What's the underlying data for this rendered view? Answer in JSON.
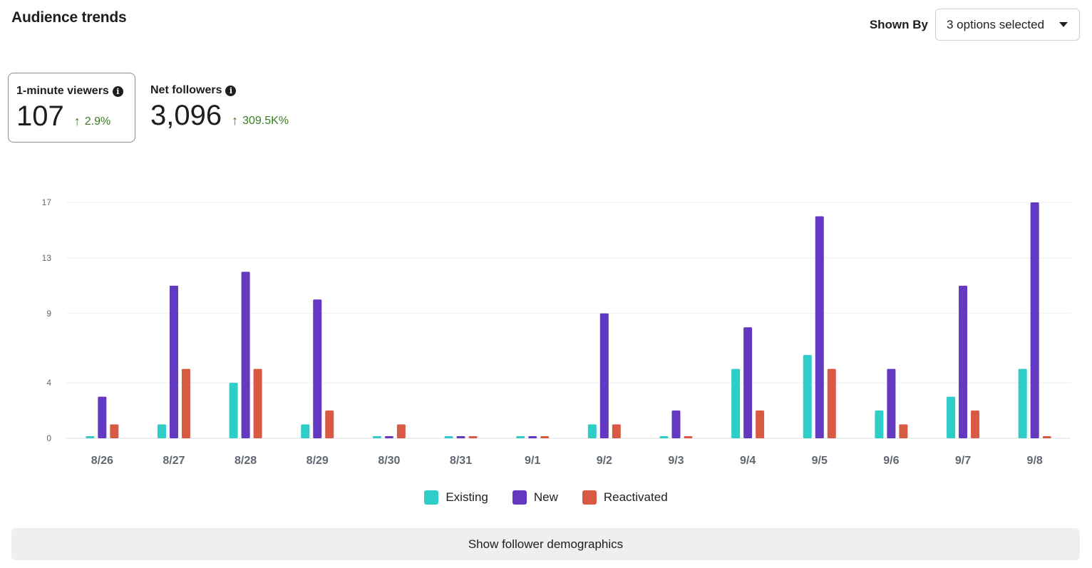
{
  "header": {
    "title": "Audience trends",
    "shown_by_label": "Shown By",
    "shown_by_value": "3 options selected"
  },
  "metrics": [
    {
      "label": "1-minute viewers",
      "value": "107",
      "change": "2.9%",
      "selected": true
    },
    {
      "label": "Net followers",
      "value": "3,096",
      "change": "309.5K%",
      "selected": false
    }
  ],
  "chart_data": {
    "type": "bar",
    "title": "",
    "xlabel": "",
    "ylabel": "",
    "grid": true,
    "legend_position": "bottom-center",
    "y_ticks": [
      0,
      4,
      9,
      13,
      17
    ],
    "ylim": [
      0,
      17
    ],
    "categories": [
      "8/26",
      "8/27",
      "8/28",
      "8/29",
      "8/30",
      "8/31",
      "9/1",
      "9/2",
      "9/3",
      "9/4",
      "9/5",
      "9/6",
      "9/7",
      "9/8"
    ],
    "series": [
      {
        "name": "Existing",
        "color": "#2ecdc8",
        "values": [
          0,
          1,
          4,
          1,
          0,
          0,
          0,
          1,
          0,
          5,
          6,
          2,
          3,
          5
        ]
      },
      {
        "name": "New",
        "color": "#6239c0",
        "values": [
          3,
          11,
          12,
          10,
          0,
          0,
          0,
          9,
          2,
          8,
          16,
          5,
          11,
          17
        ]
      },
      {
        "name": "Reactivated",
        "color": "#d95a44",
        "values": [
          1,
          5,
          5,
          2,
          1,
          0,
          0,
          1,
          0,
          2,
          5,
          1,
          2,
          0
        ]
      }
    ]
  },
  "footer": {
    "demographics_button": "Show follower demographics"
  }
}
